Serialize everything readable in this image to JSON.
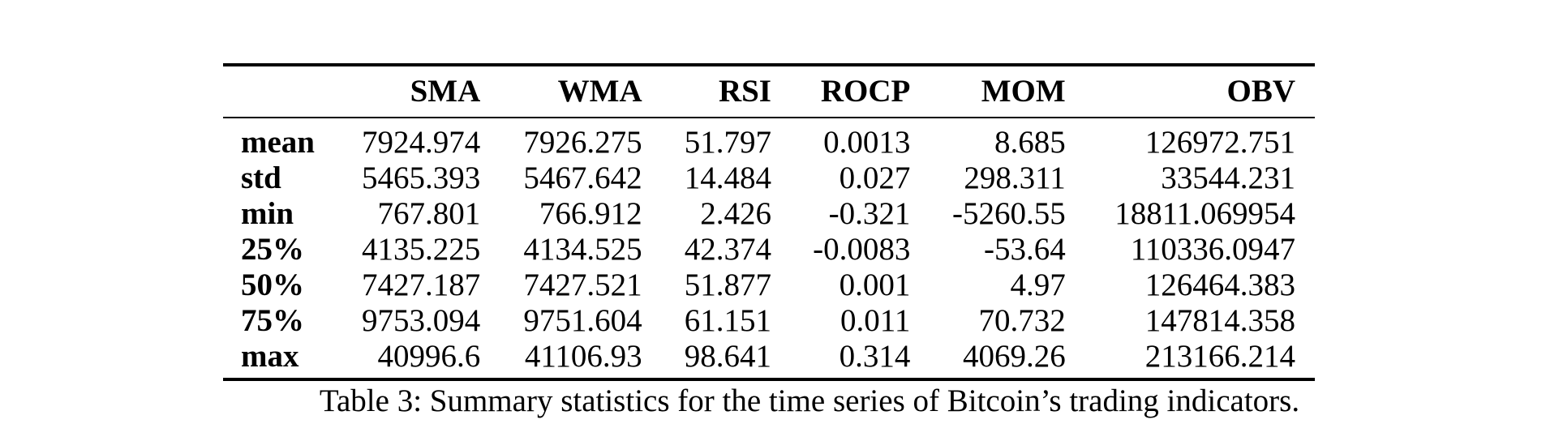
{
  "table": {
    "columns": [
      "SMA",
      "WMA",
      "RSI",
      "ROCP",
      "MOM",
      "OBV"
    ],
    "rows": [
      {
        "label": "mean",
        "values": [
          "7924.974",
          "7926.275",
          "51.797",
          "0.0013",
          "8.685",
          "126972.751"
        ]
      },
      {
        "label": "std",
        "values": [
          "5465.393",
          "5467.642",
          "14.484",
          "0.027",
          "298.311",
          "33544.231"
        ]
      },
      {
        "label": "min",
        "values": [
          "767.801",
          "766.912",
          "2.426",
          "-0.321",
          "-5260.55",
          "18811.069954"
        ]
      },
      {
        "label": "25%",
        "values": [
          "4135.225",
          "4134.525",
          "42.374",
          "-0.0083",
          "-53.64",
          "110336.0947"
        ]
      },
      {
        "label": "50%",
        "values": [
          "7427.187",
          "7427.521",
          "51.877",
          "0.001",
          "4.97",
          "126464.383"
        ]
      },
      {
        "label": "75%",
        "values": [
          "9753.094",
          "9751.604",
          "61.151",
          "0.011",
          "70.732",
          "147814.358"
        ]
      },
      {
        "label": "max",
        "values": [
          "40996.6",
          "41106.93",
          "98.641",
          "0.314",
          "4069.26",
          "213166.214"
        ]
      }
    ]
  },
  "caption": "Table 3: Summary statistics for the time series of Bitcoin’s trading indicators."
}
